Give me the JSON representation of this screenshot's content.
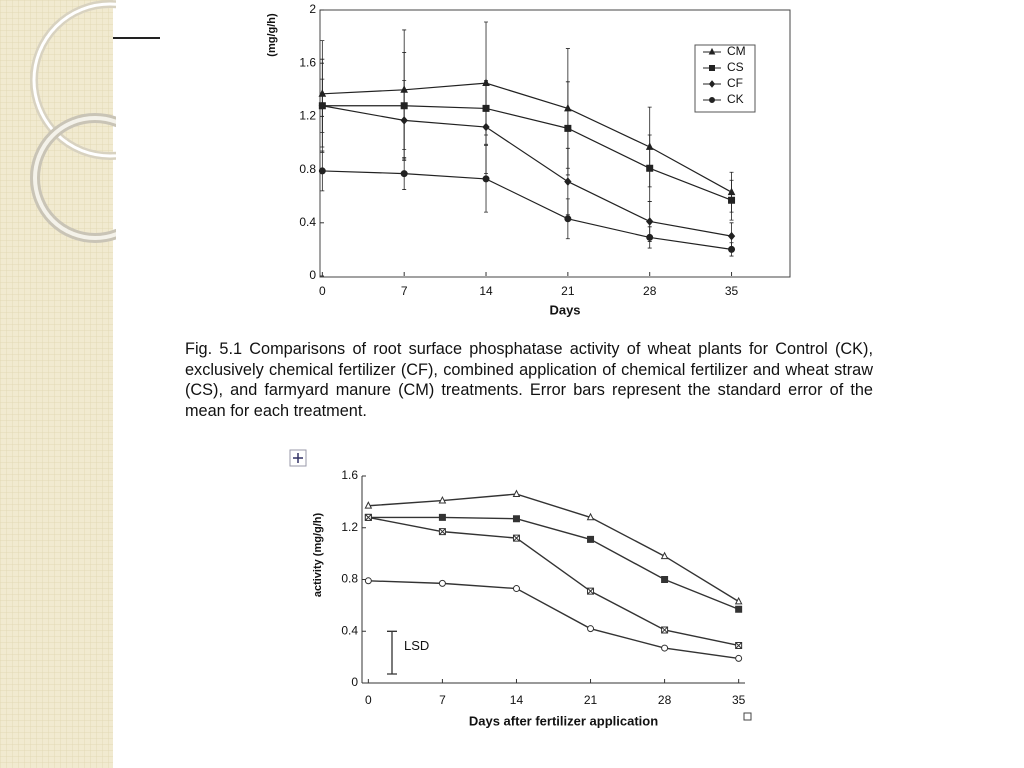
{
  "chart_data": [
    {
      "type": "line",
      "y_label": "(mg/g/h)",
      "x_label": "Days",
      "x": [
        0,
        7,
        14,
        21,
        28,
        35
      ],
      "xlim": [
        -0.2,
        40
      ],
      "xticks": [
        0,
        7,
        14,
        21,
        28,
        35
      ],
      "ylim": [
        0,
        2
      ],
      "yticks": [
        0,
        0.4,
        0.8,
        1.2,
        1.6,
        2
      ],
      "legend": "upper right",
      "series": [
        {
          "name": "CM",
          "color": "#222222",
          "marker": "triangle",
          "values": [
            1.37,
            1.4,
            1.45,
            1.26,
            0.97,
            0.63
          ],
          "errors": [
            0.4,
            0.45,
            0.46,
            0.45,
            0.3,
            0.15
          ]
        },
        {
          "name": "CS",
          "color": "#222222",
          "marker": "square",
          "values": [
            1.28,
            1.28,
            1.26,
            1.11,
            0.81,
            0.57
          ],
          "errors": [
            0.35,
            0.4,
            0.2,
            0.35,
            0.25,
            0.15
          ]
        },
        {
          "name": "CF",
          "color": "#222222",
          "marker": "diamond",
          "values": [
            1.28,
            1.17,
            1.12,
            0.71,
            0.41,
            0.3
          ],
          "errors": [
            0.2,
            0.3,
            0.35,
            0.25,
            0.15,
            0.1
          ]
        },
        {
          "name": "CK",
          "color": "#222222",
          "marker": "circle",
          "values": [
            0.79,
            0.77,
            0.73,
            0.43,
            0.29,
            0.2
          ],
          "errors": [
            0.15,
            0.12,
            0.25,
            0.15,
            0.08,
            0.05
          ]
        }
      ],
      "caption": "Fig. 5.1 Comparisons of root surface phosphatase activity of wheat plants for Control (CK), exclusively chemical fertilizer (CF), combined application of chemical fertilizer and wheat straw (CS), and farmyard manure (CM) treatments. Error bars represent the standard error of the mean for each treatment."
    },
    {
      "type": "line",
      "y_label": "activity  (mg/g/h)",
      "x_label": "Days after fertilizer application",
      "x": [
        0,
        7,
        14,
        21,
        28,
        35
      ],
      "xlim": [
        -0.6,
        35.6
      ],
      "xticks": [
        0,
        7,
        14,
        21,
        28,
        35
      ],
      "ylim": [
        0,
        1.6
      ],
      "yticks": [
        0,
        0.4,
        0.8,
        1.2,
        1.6
      ],
      "series": [
        {
          "color": "#333333",
          "marker": "triangle-open",
          "values": [
            1.37,
            1.41,
            1.46,
            1.28,
            0.98,
            0.63
          ]
        },
        {
          "color": "#333333",
          "marker": "square",
          "values": [
            1.28,
            1.28,
            1.27,
            1.11,
            0.8,
            0.57
          ]
        },
        {
          "color": "#333333",
          "marker": "cross-square",
          "values": [
            1.28,
            1.17,
            1.12,
            0.71,
            0.41,
            0.29
          ]
        },
        {
          "color": "#333333",
          "marker": "circle-open",
          "values": [
            0.79,
            0.77,
            0.73,
            0.42,
            0.27,
            0.19
          ]
        }
      ],
      "lsd": {
        "label": "LSD",
        "value": 0.33
      }
    }
  ]
}
